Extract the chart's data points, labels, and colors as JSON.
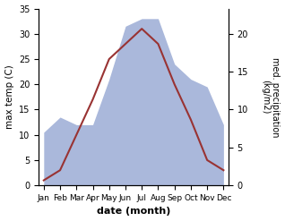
{
  "months": [
    "Jan",
    "Feb",
    "Mar",
    "Apr",
    "May",
    "Jun",
    "Jul",
    "Aug",
    "Sep",
    "Oct",
    "Nov",
    "Dec"
  ],
  "month_positions": [
    0,
    1,
    2,
    3,
    4,
    5,
    6,
    7,
    8,
    9,
    10,
    11
  ],
  "temperature": [
    1,
    3,
    10,
    17,
    25,
    28,
    31,
    28,
    20,
    13,
    5,
    3
  ],
  "precipitation": [
    7,
    9,
    8,
    8,
    14,
    21,
    22,
    22,
    16,
    14,
    13,
    8
  ],
  "temp_color": "#993333",
  "precip_color": "#aab8db",
  "temp_ylim": [
    0,
    35
  ],
  "precip_ylim": [
    0,
    23.33
  ],
  "right_yticks": [
    0,
    5,
    10,
    15,
    20
  ],
  "left_yticks": [
    0,
    5,
    10,
    15,
    20,
    25,
    30,
    35
  ],
  "title_left": "max temp (C)",
  "title_right": "med. precipitation\n(kg/m2)",
  "xlabel": "date (month)",
  "bg_color": "#ffffff",
  "figure_bg": "#ffffff",
  "temp_linewidth": 1.5
}
